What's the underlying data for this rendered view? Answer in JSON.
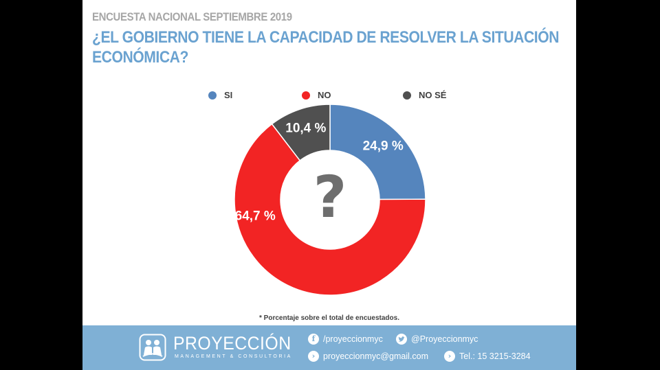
{
  "header": {
    "kicker": "ENCUESTA NACIONAL SEPTIEMBRE 2019",
    "title_line1": "¿EL GOBIERNO TIENE LA CAPACIDAD DE RESOLVER LA SITUACIÓN",
    "title_line2": "ECONÓMICA?"
  },
  "chart_data": {
    "type": "pie",
    "donut": true,
    "center_label": "?",
    "legend_position": "top",
    "slices": [
      {
        "label": "SI",
        "value": 24.9,
        "value_label": "24,9 %",
        "color": "#5585bd"
      },
      {
        "label": "NO",
        "value": 64.7,
        "value_label": "64,7 %",
        "color": "#f22424"
      },
      {
        "label": "NO SÉ",
        "value": 10.4,
        "value_label": "10,4 %",
        "color": "#505050"
      }
    ]
  },
  "footnote": "* Porcentaje sobre el total de encuestados.",
  "footer": {
    "brand": "PROYECCIÓN",
    "brand_sub": "MANAGEMENT & CONSULTORIA",
    "facebook": "/proyeccionmyc",
    "twitter": "@Proyeccionmyc",
    "email": "proyeccionmyc@gmail.com",
    "phone": "Tel.: 15 3215-3284",
    "icons": [
      "facebook-icon",
      "twitter-icon",
      "chevron-right-icon",
      "chevron-right-icon"
    ]
  }
}
